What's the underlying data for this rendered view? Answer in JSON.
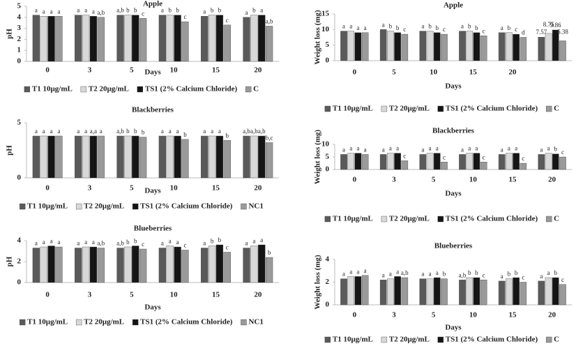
{
  "chart_data": [
    {
      "type": "bar",
      "title": "Apple",
      "x_label": "Days",
      "y_label": "pH",
      "categories": [
        "0",
        "3",
        "5",
        "10",
        "15",
        "20"
      ],
      "ylim": [
        0,
        5
      ],
      "yticks": [
        0,
        1,
        2,
        3,
        4,
        5
      ],
      "series": [
        {
          "name": "T1 10µg/mL",
          "color": "#5a5a5a",
          "values": [
            4.2,
            4.2,
            4.2,
            4.2,
            4.1,
            4.0
          ],
          "annotations": [
            "a",
            "a",
            "a,b",
            "a",
            "a",
            "a"
          ]
        },
        {
          "name": "T2 20µg/mL",
          "color": "#d8d8d8",
          "values": [
            4.1,
            4.2,
            4.2,
            4.2,
            4.2,
            4.2
          ],
          "annotations": [
            "a",
            "a",
            "b",
            "b",
            "b",
            "b"
          ]
        },
        {
          "name": "TS1 (2% Calcium Chloride)",
          "color": "#151515",
          "values": [
            4.1,
            4.1,
            4.2,
            4.2,
            4.2,
            4.2
          ],
          "annotations": [
            "a",
            "a",
            "b",
            "b",
            "b",
            "a"
          ]
        },
        {
          "name": "C",
          "color": "#9a9a9a",
          "values": [
            4.1,
            4.0,
            3.9,
            3.6,
            3.3,
            3.2
          ],
          "annotations": [
            "a",
            "a,b",
            "c",
            "c",
            "c",
            "a,b"
          ]
        }
      ]
    },
    {
      "type": "bar",
      "title": "Blackberries",
      "x_label": "Days",
      "y_label": "pH",
      "categories": [
        "0",
        "3",
        "5",
        "10",
        "15",
        "20"
      ],
      "ylim": [
        0,
        5
      ],
      "yticks": [
        0,
        5
      ],
      "series": [
        {
          "name": "T1 10µg/mL",
          "color": "#5a5a5a",
          "values": [
            3.8,
            3.8,
            3.8,
            3.8,
            3.8,
            3.8
          ],
          "annotations": [
            "a",
            "a",
            "a,b",
            "a",
            "a",
            "a,b"
          ]
        },
        {
          "name": "T2 20µg/mL",
          "color": "#d8d8d8",
          "values": [
            3.8,
            3.8,
            3.8,
            3.8,
            3.8,
            3.8
          ],
          "annotations": [
            "a",
            "a",
            "b",
            "a",
            "a",
            "a,b"
          ]
        },
        {
          "name": "TS1 (2% Calcium Chloride)",
          "color": "#151515",
          "values": [
            3.8,
            3.8,
            3.8,
            3.8,
            3.8,
            3.8
          ],
          "annotations": [
            "a",
            "a,a",
            "b",
            "a",
            "a",
            "a,b"
          ]
        },
        {
          "name": "NC1",
          "color": "#9a9a9a",
          "values": [
            3.8,
            3.8,
            3.7,
            3.5,
            3.4,
            3.2
          ],
          "annotations": [
            "a",
            "a",
            "b",
            "b",
            "b",
            "b,c"
          ]
        }
      ]
    },
    {
      "type": "bar",
      "title": "Blueberries",
      "x_label": "Days",
      "y_label": "pH",
      "categories": [
        "0",
        "3",
        "5",
        "10",
        "15",
        "20"
      ],
      "ylim": [
        0,
        4
      ],
      "yticks": [
        0,
        2,
        4
      ],
      "series": [
        {
          "name": "T1 10µg/mL",
          "color": "#5a5a5a",
          "values": [
            3.3,
            3.3,
            3.3,
            3.3,
            3.3,
            3.3
          ],
          "annotations": [
            "a",
            "a",
            "a,b",
            "a",
            "a",
            "a"
          ]
        },
        {
          "name": "T2 20µg/mL",
          "color": "#d8d8d8",
          "values": [
            3.4,
            3.4,
            3.4,
            3.5,
            3.5,
            3.5
          ],
          "annotations": [
            "a",
            "a",
            "b",
            "a",
            "b",
            "a"
          ]
        },
        {
          "name": "TS1 (2% Calcium Chloride)",
          "color": "#151515",
          "values": [
            3.5,
            3.4,
            3.5,
            3.4,
            3.6,
            3.6
          ],
          "annotations": [
            "a",
            "a",
            "b",
            "a",
            "b",
            "a"
          ]
        },
        {
          "name": "NC1",
          "color": "#9a9a9a",
          "values": [
            3.4,
            3.3,
            3.2,
            3.1,
            2.9,
            2.4
          ],
          "annotations": [
            "a",
            "a,b",
            "c",
            "c",
            "c",
            "b"
          ]
        }
      ]
    },
    {
      "type": "bar",
      "title": "Apple",
      "x_label": "Days",
      "y_label": "Weight loss (mg)",
      "categories": [
        "0",
        "5",
        "10",
        "15",
        "20",
        null
      ],
      "ylim": [
        0,
        15
      ],
      "yticks": [
        0,
        5,
        10,
        15
      ],
      "series": [
        {
          "name": "T1 10µg/mL",
          "color": "#5a5a5a",
          "values": [
            9.5,
            10,
            9.5,
            9.5,
            9,
            7.57
          ],
          "annotations": [
            "a",
            "a",
            "a",
            "a",
            "a",
            null
          ]
        },
        {
          "name": "T2 20µg/mL",
          "color": "#d8d8d8",
          "values": [
            9.5,
            9.5,
            9.5,
            9.5,
            9,
            8.75
          ],
          "annotations": [
            "a",
            "b",
            "b",
            "b",
            "b",
            null
          ]
        },
        {
          "name": "TS1 (2% Calcium Chloride)",
          "color": "#151515",
          "values": [
            9,
            9,
            9,
            9,
            8.5,
            9.86
          ],
          "annotations": [
            "a",
            "b",
            "b",
            "b",
            "c",
            null
          ]
        },
        {
          "name": "C",
          "color": "#9a9a9a",
          "values": [
            9,
            8.5,
            8.5,
            8,
            7.5,
            6.38
          ],
          "annotations": [
            "a",
            "c",
            "c",
            "c",
            "d",
            null
          ]
        }
      ]
    },
    {
      "type": "bar",
      "title": "Blackberries",
      "x_label": "Days",
      "y_label": "Weight loss (mg)",
      "categories": [
        "0",
        "3",
        "5",
        "10",
        "15",
        "20"
      ],
      "ylim": [
        0,
        10
      ],
      "yticks": [
        0,
        5,
        10
      ],
      "series": [
        {
          "name": "T1 10µg/mL",
          "color": "#5a5a5a",
          "values": [
            6,
            6,
            6,
            6,
            6,
            6
          ],
          "annotations": [
            "a",
            "a",
            "a",
            "a",
            "a",
            "a"
          ]
        },
        {
          "name": "T2 20µg/mL",
          "color": "#d8d8d8",
          "values": [
            6.5,
            6.5,
            6.5,
            6.5,
            6.5,
            6.5
          ],
          "annotations": [
            "a",
            "a",
            "a",
            "a",
            "a",
            "a"
          ]
        },
        {
          "name": "TS1 (2% Calcium Chloride)",
          "color": "#151515",
          "values": [
            6.5,
            6.5,
            6.5,
            6.5,
            6.5,
            6.2
          ],
          "annotations": [
            "a",
            "a",
            "a",
            "a",
            "a",
            "b"
          ]
        },
        {
          "name": "C",
          "color": "#9a9a9a",
          "values": [
            6,
            3.5,
            3,
            3,
            2.5,
            5
          ],
          "annotations": [
            "a",
            "c",
            "c",
            "c",
            "c",
            "c"
          ]
        }
      ]
    },
    {
      "type": "bar",
      "title": "Blueberries",
      "x_label": "Days",
      "y_label": "Weight loss (mg)",
      "categories": [
        "0",
        "3",
        "5",
        "10",
        "15",
        "20"
      ],
      "ylim": [
        0,
        4
      ],
      "yticks": [
        0,
        2,
        4
      ],
      "series": [
        {
          "name": "T1 10µg/mL",
          "color": "#5a5a5a",
          "values": [
            2.3,
            2.2,
            2.3,
            2.2,
            2.1,
            2.1
          ],
          "annotations": [
            "a",
            "a",
            "a",
            "a,b",
            "a",
            "a"
          ]
        },
        {
          "name": "T2 20µg/mL",
          "color": "#d8d8d8",
          "values": [
            2.5,
            2.3,
            2.3,
            2.4,
            2.3,
            2.4
          ],
          "annotations": [
            "a",
            "a",
            "a",
            "b",
            "b",
            "a"
          ]
        },
        {
          "name": "TS1 (2% Calcium Chloride)",
          "color": "#151515",
          "values": [
            2.5,
            2.5,
            2.4,
            2.4,
            2.4,
            2.4
          ],
          "annotations": [
            "a",
            "a",
            "a",
            "b",
            "b",
            "b"
          ]
        },
        {
          "name": "C",
          "color": "#9a9a9a",
          "values": [
            2.6,
            2.4,
            2.3,
            2.2,
            2.0,
            1.8
          ],
          "annotations": [
            "a",
            "a,b",
            "b",
            "c",
            "c",
            "c"
          ]
        }
      ]
    }
  ]
}
